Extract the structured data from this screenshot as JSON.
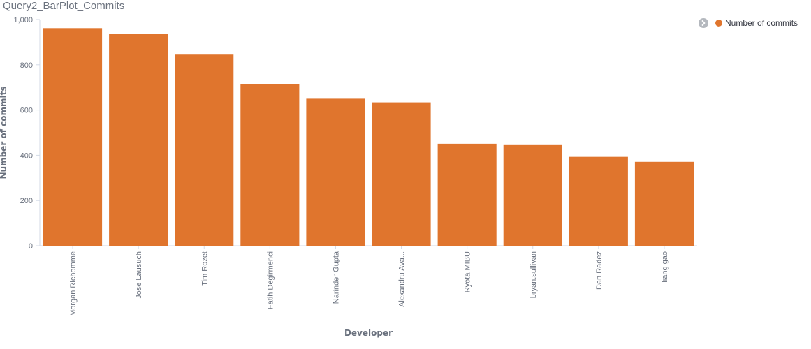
{
  "panel": {
    "title": "Query2_BarPlot_Commits"
  },
  "legend": {
    "toggle_icon": "chevron-right-icon",
    "label": "Number of commits"
  },
  "colors": {
    "bar": "#e0752d",
    "axis": "#d3dae6",
    "text": "#69707d"
  },
  "chart_data": {
    "type": "bar",
    "title": "",
    "xlabel": "Developer",
    "ylabel": "Number of commits",
    "ylim": [
      0,
      1000
    ],
    "yticks": [
      0,
      200,
      400,
      600,
      800,
      1000
    ],
    "ytick_labels": [
      "0",
      "200",
      "400",
      "600",
      "800",
      "1,000"
    ],
    "grid": false,
    "legend_position": "top-right",
    "categories": [
      "Morgan Richomme",
      "Jose Lausuch",
      "Tim Rozet",
      "Fatih Degirmenci",
      "Narinder Gupta",
      "Alexandru Ava...",
      "Ryota MIBU",
      "bryan.sullivan",
      "Dan Radez",
      "liang gao"
    ],
    "series": [
      {
        "name": "Number of commits",
        "values": [
          962,
          937,
          845,
          716,
          650,
          634,
          451,
          445,
          393,
          371
        ]
      }
    ]
  }
}
